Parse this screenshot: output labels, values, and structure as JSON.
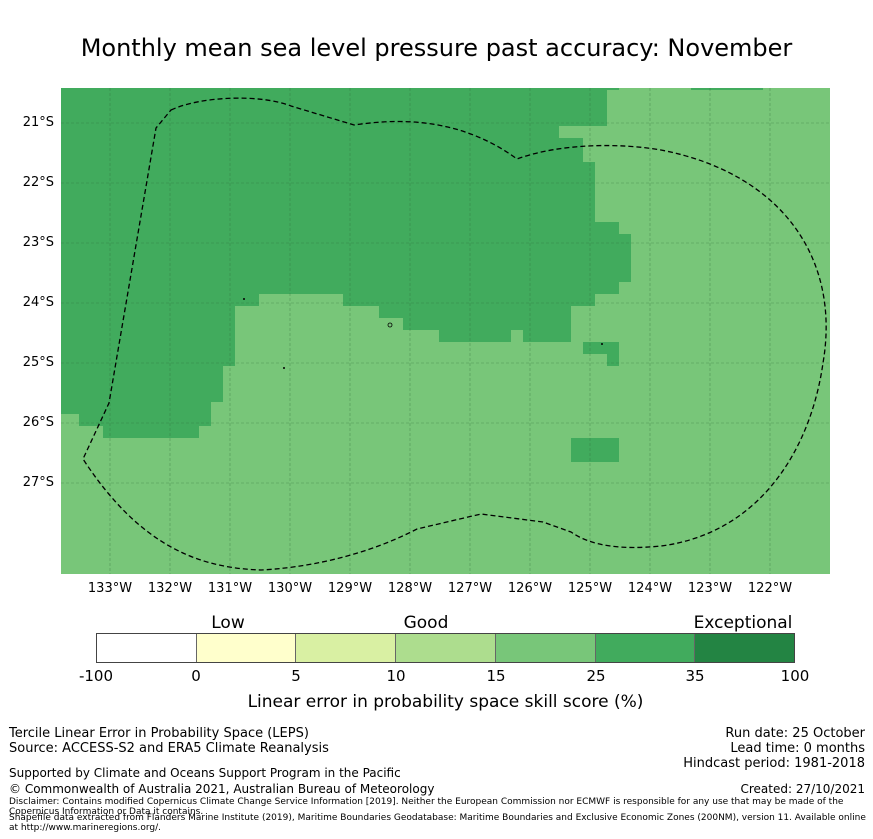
{
  "title": "Monthly mean sea level pressure past accuracy: November",
  "map": {
    "lat_labels": [
      "21°S",
      "22°S",
      "23°S",
      "24°S",
      "25°S",
      "26°S",
      "27°S"
    ],
    "lon_labels": [
      "133°W",
      "132°W",
      "131°W",
      "130°W",
      "129°W",
      "128°W",
      "127°W",
      "126°W",
      "125°W",
      "124°W",
      "123°W",
      "122°W"
    ],
    "colors": {
      "skill_25_35": "#41ab5d",
      "skill_15_25": "#78c679",
      "border": "#000000"
    }
  },
  "legend": {
    "categories": [
      "Low",
      "Good",
      "Exceptional"
    ],
    "ticks": [
      "-100",
      "0",
      "5",
      "10",
      "15",
      "25",
      "35",
      "100"
    ],
    "colors": [
      "#ffffff",
      "#ffffcc",
      "#d9f0a3",
      "#addd8e",
      "#78c679",
      "#41ab5d",
      "#238443"
    ],
    "label": "Linear error in probability space skill score (%)"
  },
  "footer": {
    "line1": "Tercile Linear Error in Probability Space (LEPS)",
    "line2": "Source: ACCESS-S2 and ERA5 Climate Reanalysis",
    "support": "Supported by Climate and Oceans Support Program in the Pacific",
    "copyright": "© Commonwealth of Australia 2021, Australian Bureau of Meteorology",
    "disclaimer": "Disclaimer: Contains modified Copernicus Climate Change Service Information [2019]. Neither the European Commission nor ECMWF is responsible for any use that may be made of the Copernicus Information or Data it contains.",
    "shapefile": "Shapefile data extracted from Flanders Marine Institute (2019), Maritime Boundaries Geodatabase: Maritime Boundaries and Exclusive Economic Zones (200NM), version 11. Available online at http://www.marineregions.org/.",
    "run_date": "Run date: 25 October",
    "lead_time": "Lead time: 0 months",
    "hindcast": "Hindcast period: 1981-2018",
    "created": "Created: 27/10/2021"
  }
}
